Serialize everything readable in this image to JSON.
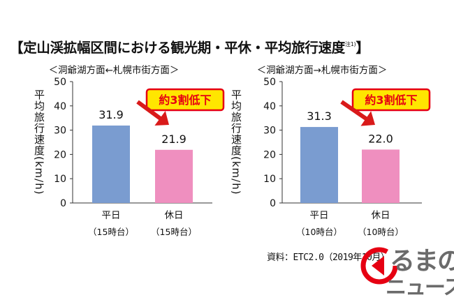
{
  "page": {
    "title": "【定山渓拡幅区間における観光期・平休・平均旅行速度",
    "title_note": "注1)",
    "title_close": "】",
    "source": "資料：ETC2.0（2019年10月）",
    "logo": {
      "line1": "るまの",
      "line2": "ニュース",
      "mark_color": "#e60012",
      "text_color": "#6b6b6b"
    }
  },
  "chart_data": [
    {
      "type": "bar",
      "title": "＜洞爺湖方面←札幌市街方面＞",
      "ylabel": "平均旅行速度(km/h)",
      "ylim": [
        0,
        50
      ],
      "yticks": [
        0,
        10,
        20,
        30,
        40,
        50
      ],
      "categories": [
        "平日",
        "休日"
      ],
      "category_sublabels": [
        "（15時台）",
        "（15時台）"
      ],
      "values": [
        31.9,
        21.9
      ],
      "value_labels": [
        "31.9",
        "21.9"
      ],
      "colors": [
        "#7a9cd0",
        "#ef8fbf"
      ],
      "annotation": "約3割低下",
      "annotation_color": "#e60012"
    },
    {
      "type": "bar",
      "title": "＜洞爺湖方面→札幌市街方面＞",
      "ylabel": "平均旅行速度(km/h)",
      "ylim": [
        0,
        50
      ],
      "yticks": [
        0,
        10,
        20,
        30,
        40,
        50
      ],
      "categories": [
        "平日",
        "休日"
      ],
      "category_sublabels": [
        "（10時台）",
        "（10時台）"
      ],
      "values": [
        31.3,
        22.0
      ],
      "value_labels": [
        "31.3",
        "22.0"
      ],
      "colors": [
        "#7a9cd0",
        "#ef8fbf"
      ],
      "annotation": "約3割低下",
      "annotation_color": "#e60012"
    }
  ]
}
